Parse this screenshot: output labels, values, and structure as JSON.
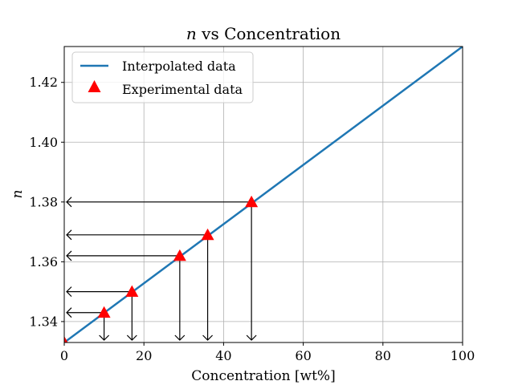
{
  "chart_data": {
    "type": "line",
    "title": "n vs Concentration",
    "title_var": "n",
    "title_rest": " vs Concentration",
    "xlabel": "Concentration [wt%]",
    "ylabel": "n",
    "xlim": [
      0,
      100
    ],
    "ylim": [
      1.333,
      1.432
    ],
    "xticks": [
      0,
      20,
      40,
      60,
      80,
      100
    ],
    "xtick_labels": [
      "0",
      "20",
      "40",
      "60",
      "80",
      "100"
    ],
    "yticks": [
      1.34,
      1.36,
      1.38,
      1.4,
      1.42
    ],
    "ytick_labels": [
      "1.34",
      "1.36",
      "1.38",
      "1.40",
      "1.42"
    ],
    "grid": true,
    "legend_position": "top-left",
    "series": [
      {
        "name": "Interpolated data",
        "kind": "line",
        "color": "#1f77b4",
        "x": [
          0,
          100
        ],
        "y": [
          1.333,
          1.432
        ]
      },
      {
        "name": "Experimental data",
        "kind": "marker",
        "marker": "triangle",
        "color": "#ff0000",
        "x": [
          0,
          10,
          17,
          29,
          36,
          47
        ],
        "y": [
          1.333,
          1.343,
          1.35,
          1.362,
          1.369,
          1.38
        ]
      }
    ],
    "annotations": "arrows from each experimental point to the x-axis and to the y-axis"
  }
}
